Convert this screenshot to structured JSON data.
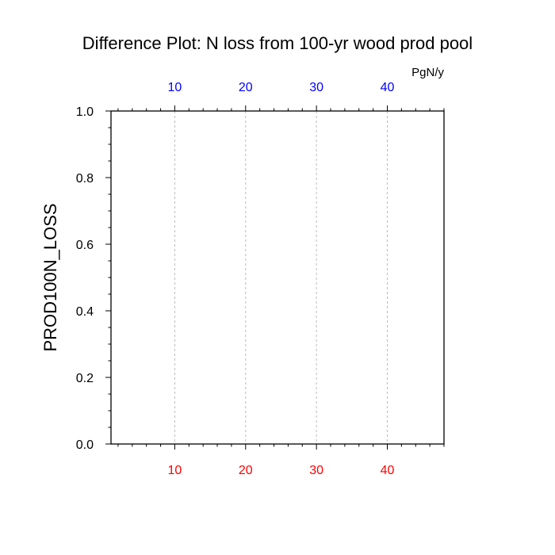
{
  "chart_data": {
    "type": "line",
    "title": "Difference Plot: N loss from 100-yr wood prod pool",
    "ylabel": "PROD100N_LOSS",
    "units": "PgN/y",
    "xlim": [
      1,
      48
    ],
    "ylim": [
      0,
      1
    ],
    "x_ticks_bottom": [
      10,
      20,
      30,
      40
    ],
    "x_ticks_top": [
      10,
      20,
      30,
      40
    ],
    "y_ticks": [
      "0.0",
      "0.2",
      "0.4",
      "0.6",
      "0.8",
      "1.0"
    ],
    "x_minor_step": 2,
    "y_minor_step": 0.05,
    "grid": "vertical dashed at major x ticks",
    "series": [],
    "colors": {
      "bottom_tick_labels": "#ff0000",
      "top_tick_labels": "#0000ff",
      "axis": "#000000",
      "grid": "#bbbbbb"
    }
  }
}
